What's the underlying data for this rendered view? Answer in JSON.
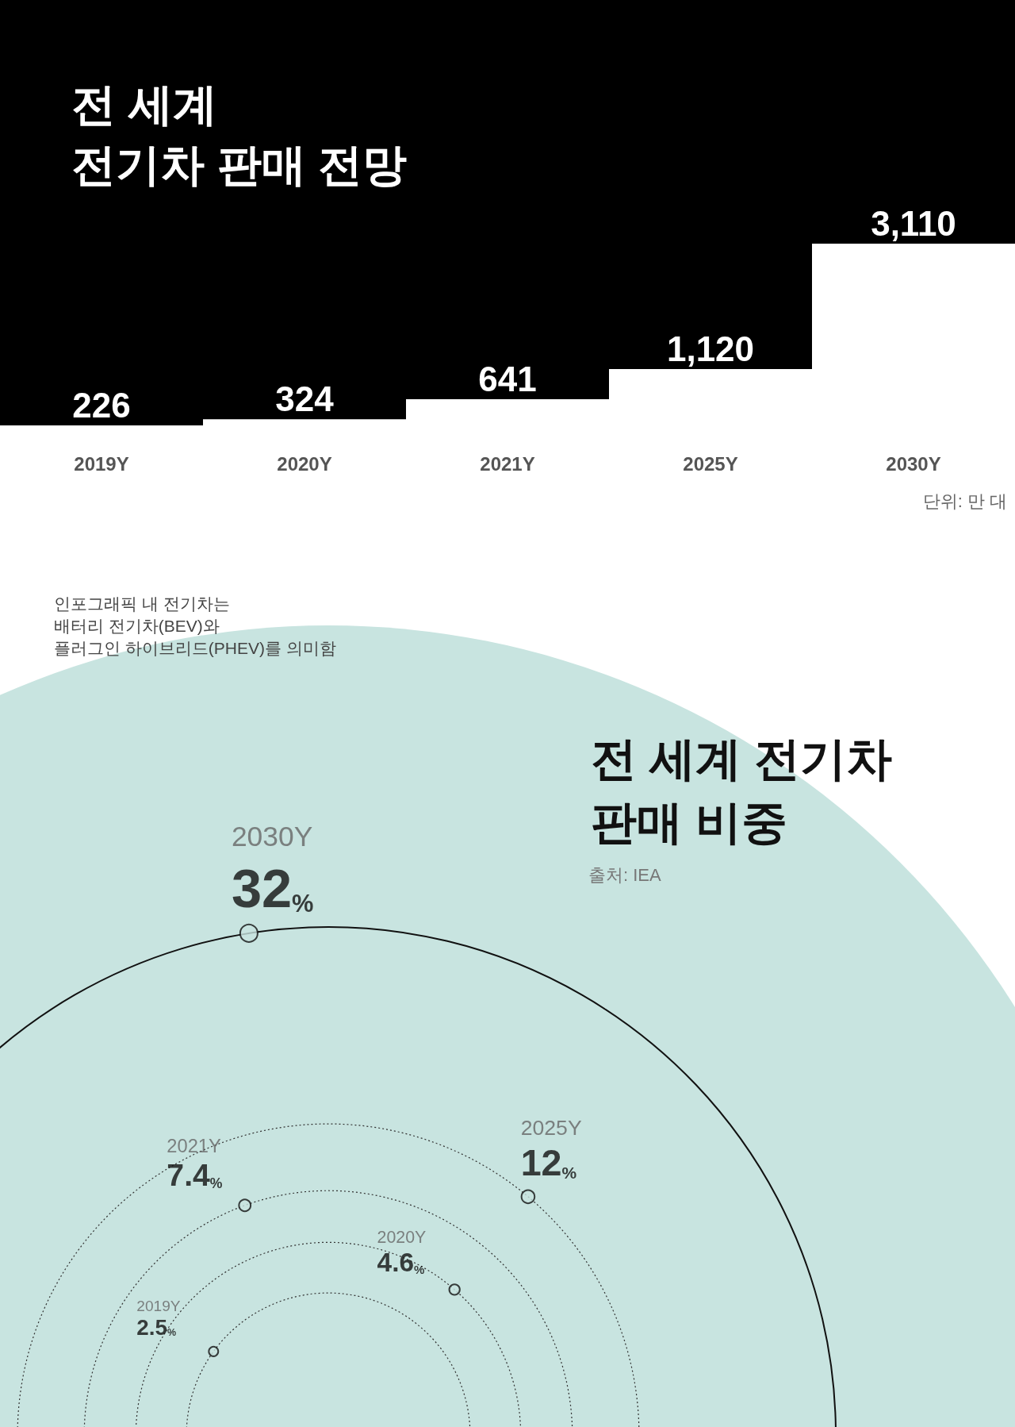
{
  "chart_data": [
    {
      "type": "bar",
      "title": "전 세계\n전기차 판매 전망",
      "categories": [
        "2019Y",
        "2020Y",
        "2021Y",
        "2025Y",
        "2030Y"
      ],
      "values": [
        226,
        324,
        641,
        1120,
        3110
      ],
      "value_labels": [
        "226",
        "324",
        "641",
        "1,120",
        "3,110"
      ],
      "color": "#ffffff",
      "annotations": [
        "단위: 만 대"
      ]
    },
    {
      "type": "other",
      "title": "전 세계 전기차\n판매 비중",
      "categories": [
        "2019Y",
        "2020Y",
        "2021Y",
        "2025Y",
        "2030Y"
      ],
      "values": [
        2.5,
        4.6,
        7.4,
        12,
        32
      ],
      "value_labels": [
        "2.5%",
        "4.6%",
        "7.4%",
        "12%",
        "32%"
      ],
      "color": "#111111",
      "annotations": [
        "출처: IEA",
        "인포그래픽 내 전기차는\n배터리 전기차(BEV)와\n플러그인 하이브리드(PHEV)를 의미함"
      ]
    }
  ]
}
